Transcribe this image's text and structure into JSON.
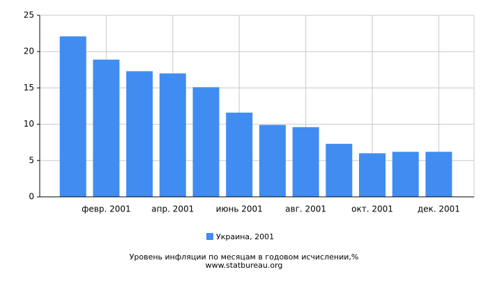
{
  "chart_data": {
    "type": "bar",
    "title": "Уровень инфляции по месяцам в годовом исчислении,%",
    "subtitle": "www.statbureau.org",
    "categories": [
      null,
      "февр. 2001",
      null,
      "апр. 2001",
      null,
      "июнь 2001",
      null,
      "авг. 2001",
      null,
      "окт. 2001",
      null,
      "дек. 2001"
    ],
    "series": [
      {
        "name": "Украина, 2001",
        "color": "#418cf0",
        "values": [
          22.1,
          18.9,
          17.3,
          17.0,
          15.1,
          11.6,
          9.9,
          9.6,
          7.3,
          6.0,
          6.2,
          6.2
        ]
      }
    ],
    "ylim": [
      0,
      25
    ],
    "yticks": [
      0,
      5,
      10,
      15,
      20,
      25
    ],
    "grid": true
  }
}
